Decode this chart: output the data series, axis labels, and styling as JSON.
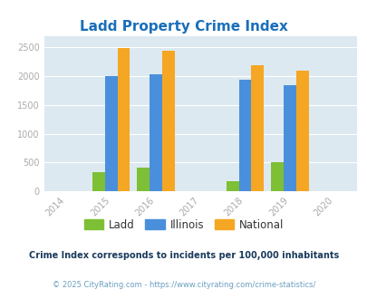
{
  "title": "Ladd Property Crime Index",
  "title_color": "#1a6fba",
  "years": [
    2014,
    2015,
    2016,
    2017,
    2018,
    2019,
    2020
  ],
  "bar_years": [
    2015,
    2016,
    2018,
    2019
  ],
  "ladd": [
    335,
    415,
    170,
    510
  ],
  "illinois": [
    2000,
    2040,
    1940,
    1845
  ],
  "national": [
    2495,
    2445,
    2195,
    2095
  ],
  "ladd_color": "#7dc035",
  "illinois_color": "#4a8fdc",
  "national_color": "#f5a623",
  "bg_color": "#dce9f0",
  "bar_width": 0.28,
  "ylim": [
    0,
    2700
  ],
  "yticks": [
    0,
    500,
    1000,
    1500,
    2000,
    2500
  ],
  "footnote1": "Crime Index corresponds to incidents per 100,000 inhabitants",
  "footnote2": "© 2025 CityRating.com - https://www.cityrating.com/crime-statistics/",
  "footnote1_color": "#1a3a5c",
  "footnote2_color": "#6a9fc0",
  "legend_labels": [
    "Ladd",
    "Illinois",
    "National"
  ],
  "grid_color": "#ffffff",
  "tick_color": "#aaaaaa"
}
